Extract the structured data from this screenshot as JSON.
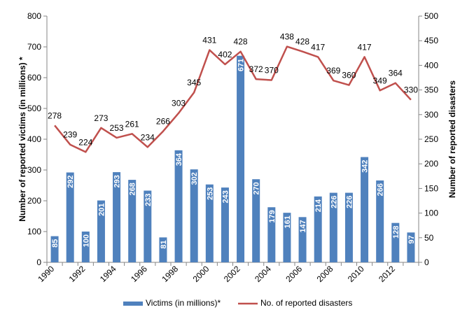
{
  "chart_data": {
    "type": "bar",
    "categories": [
      "1990",
      "1991",
      "1992",
      "1993",
      "1994",
      "1995",
      "1996",
      "1997",
      "1998",
      "1999",
      "2000",
      "2001",
      "2002",
      "2003",
      "2004",
      "2005",
      "2006",
      "2007",
      "2008",
      "2009",
      "2010",
      "2011",
      "2012",
      "2013"
    ],
    "x_tick_labels": [
      "1990",
      "1992",
      "1994",
      "1996",
      "1998",
      "2000",
      "2002",
      "2004",
      "2006",
      "2008",
      "2010",
      "2012"
    ],
    "series": [
      {
        "name": "Victims (in millions)*",
        "type": "bar",
        "axis": "left",
        "color": "#4f81bd",
        "values": [
          85,
          292,
          100,
          201,
          293,
          268,
          233,
          81,
          364,
          302,
          253,
          243,
          671,
          270,
          179,
          161,
          147,
          214,
          226,
          226,
          342,
          266,
          128,
          97
        ]
      },
      {
        "name": "No. of reported disasters",
        "type": "line",
        "axis": "right",
        "color": "#c0504d",
        "values": [
          278,
          239,
          224,
          273,
          253,
          261,
          234,
          266,
          303,
          345,
          431,
          402,
          428,
          372,
          370,
          438,
          428,
          417,
          369,
          360,
          417,
          349,
          364,
          330
        ]
      }
    ],
    "ylabel": "Number of reported victims (in millions) *",
    "ylabel_right": "Number of reported disasters",
    "xlabel": "",
    "ylim": [
      0,
      800
    ],
    "ylim_right": [
      0,
      500
    ],
    "yticks": [
      0,
      100,
      200,
      300,
      400,
      500,
      600,
      700,
      800
    ],
    "yticks_right": [
      0,
      50,
      100,
      150,
      200,
      250,
      300,
      350,
      400,
      450,
      500
    ],
    "grid": false,
    "legend_position": "bottom"
  }
}
